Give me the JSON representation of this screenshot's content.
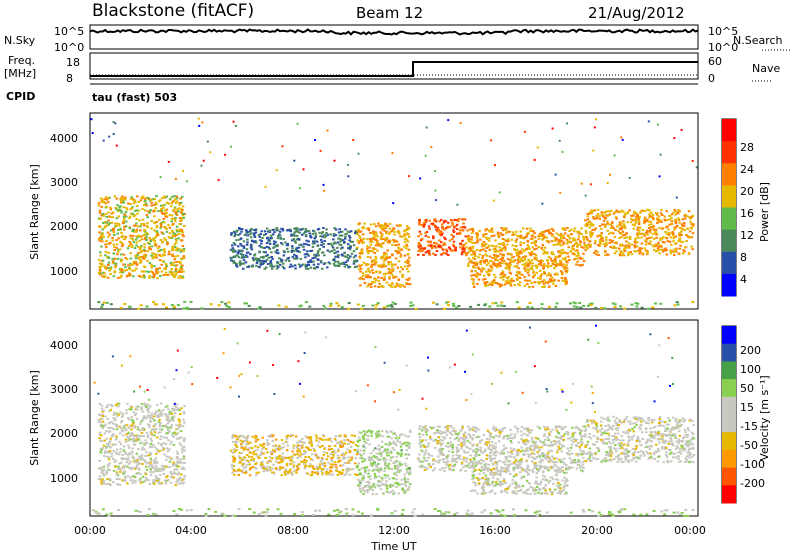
{
  "header": {
    "station": "Blackstone (fitACF)",
    "beam": "Beam 12",
    "date": "21/Aug/2012"
  },
  "top_panels": {
    "nsky_label": "N.Sky",
    "nsky_ticks": [
      "10^5",
      "10^0"
    ],
    "nsearch_label": "N.Search",
    "nsearch_ticks": [
      "10^5",
      "10^0"
    ],
    "freq_label": "Freq.",
    "freq_unit": "[MHz]",
    "freq_ticks": [
      "18",
      "8"
    ],
    "nave_label": "Nave",
    "nave_ticks": [
      "60",
      "0"
    ],
    "cpid_label": "CPID",
    "cpid_value": "tau (fast) 503"
  },
  "colors": {
    "power_scale": [
      "#0000ff",
      "#2a4fa8",
      "#4a8a5a",
      "#5fbb4a",
      "#e6b800",
      "#ff7f00",
      "#ff3000",
      "#ff0000"
    ],
    "velocity_scale": [
      "#ff0000",
      "#ff5500",
      "#ff9900",
      "#e6b800",
      "#c8c8c0",
      "#c8c8c0",
      "#8ad050",
      "#46a046",
      "#2a4fa8",
      "#0000ff"
    ]
  },
  "chart_data": [
    {
      "type": "heatmap",
      "name": "power-panel",
      "ylabel": "Slant Range [km]",
      "yticks": [
        "1000",
        "2000",
        "3000",
        "4000"
      ],
      "ylim": [
        200,
        4500
      ],
      "xlim": [
        0,
        24
      ],
      "colorbar": {
        "label": "Power [dB]",
        "ticks": [
          "28",
          "24",
          "20",
          "16",
          "12",
          "8",
          "4"
        ],
        "range": [
          0,
          32
        ]
      },
      "scatter_bands": [
        {
          "t0": 0.3,
          "t1": 3.7,
          "r0": 900,
          "r1": 2700,
          "value": 18
        },
        {
          "t0": 5.5,
          "t1": 10.5,
          "r0": 1100,
          "r1": 2000,
          "value": 8
        },
        {
          "t0": 10.5,
          "t1": 12.6,
          "r0": 700,
          "r1": 2100,
          "value": 20
        },
        {
          "t0": 12.9,
          "t1": 14.8,
          "r0": 1400,
          "r1": 2200,
          "value": 24
        },
        {
          "t0": 14.8,
          "t1": 19.5,
          "r0": 1150,
          "r1": 2000,
          "value": 20
        },
        {
          "t0": 15.0,
          "t1": 18.8,
          "r0": 700,
          "r1": 1300,
          "value": 20
        },
        {
          "t0": 19.5,
          "t1": 23.8,
          "r0": 1400,
          "r1": 2400,
          "value": 20
        }
      ]
    },
    {
      "type": "heatmap",
      "name": "velocity-panel",
      "ylabel": "Slant Range [km]",
      "yticks": [
        "1000",
        "2000",
        "3000",
        "4000"
      ],
      "ylim": [
        200,
        4500
      ],
      "xlabel": "Time UT",
      "xticks": [
        "00:00",
        "04:00",
        "08:00",
        "12:00",
        "16:00",
        "20:00",
        "00:00"
      ],
      "xlim": [
        0,
        24
      ],
      "colorbar": {
        "label": "Velocity [m s⁻¹]",
        "ticks": [
          "200",
          "100",
          "50",
          "15",
          "-15",
          "-50",
          "-100",
          "-200"
        ],
        "range": [
          -250,
          250
        ]
      },
      "scatter_bands": [
        {
          "t0": 0.3,
          "t1": 3.7,
          "r0": 900,
          "r1": 2700,
          "value": 0
        },
        {
          "t0": 5.5,
          "t1": 10.5,
          "r0": 1100,
          "r1": 2000,
          "value": -60
        },
        {
          "t0": 10.5,
          "t1": 12.6,
          "r0": 700,
          "r1": 2100,
          "value": 40
        },
        {
          "t0": 12.9,
          "t1": 19.5,
          "r0": 1200,
          "r1": 2200,
          "value": 0
        },
        {
          "t0": 15.0,
          "t1": 18.8,
          "r0": 700,
          "r1": 1300,
          "value": 0
        },
        {
          "t0": 19.5,
          "t1": 23.8,
          "r0": 1400,
          "r1": 2400,
          "value": 0
        }
      ]
    }
  ]
}
